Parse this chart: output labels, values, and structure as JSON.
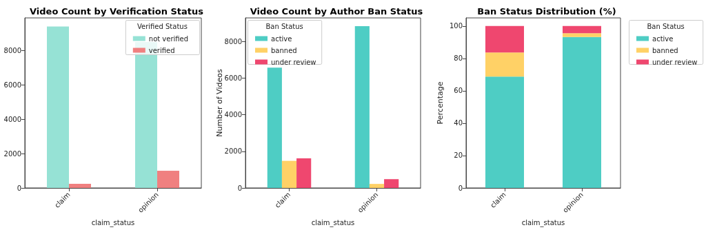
{
  "chart_data": [
    {
      "type": "bar",
      "title": "Video Count by Verification Status",
      "xlabel": "claim_status",
      "legend_title": "Verified Status",
      "legend": "top right",
      "grid": false,
      "categories": [
        "claim",
        "opinion"
      ],
      "ylim": [
        0,
        9900
      ],
      "yticks": [
        0,
        2000,
        4000,
        6000,
        8000
      ],
      "series": [
        {
          "name": "not verified",
          "color": "#96e2d5",
          "values": [
            9400,
            8500
          ]
        },
        {
          "name": "verified",
          "color": "#f08080",
          "values": [
            240,
            1000
          ]
        }
      ]
    },
    {
      "type": "bar",
      "title": "Video Count by Author Ban Status",
      "xlabel": "claim_status",
      "ylabel": "Number of Videos",
      "legend_title": "Ban Status",
      "legend": "top left",
      "grid": false,
      "categories": [
        "claim",
        "opinion"
      ],
      "ylim": [
        0,
        9290
      ],
      "yticks": [
        0,
        2000,
        4000,
        6000,
        8000
      ],
      "series": [
        {
          "name": "active",
          "color": "#4ecdc4",
          "values": [
            6570,
            8840
          ]
        },
        {
          "name": "banned",
          "color": "#ffd166",
          "values": [
            1480,
            220
          ]
        },
        {
          "name": "under review",
          "color": "#ef476f",
          "values": [
            1620,
            480
          ]
        }
      ]
    },
    {
      "type": "bar",
      "stacked": true,
      "title": "Ban Status Distribution (%)",
      "xlabel": "claim_status",
      "ylabel": "Percentage",
      "legend_title": "Ban Status",
      "legend": "right",
      "grid": false,
      "categories": [
        "claim",
        "opinion"
      ],
      "ylim": [
        0,
        105
      ],
      "yticks": [
        0,
        20,
        40,
        60,
        80,
        100
      ],
      "series": [
        {
          "name": "active",
          "color": "#4ecdc4",
          "values": [
            68.8,
            93.2
          ]
        },
        {
          "name": "banned",
          "color": "#ffd166",
          "values": [
            14.8,
            2.3
          ]
        },
        {
          "name": "under review",
          "color": "#ef476f",
          "values": [
            16.4,
            4.5
          ]
        }
      ]
    }
  ]
}
